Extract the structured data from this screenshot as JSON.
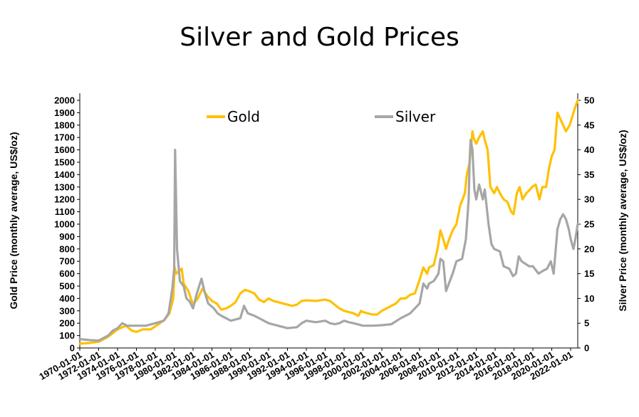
{
  "chart_data": {
    "type": "line",
    "title": "Silver and Gold Prices",
    "ylabel_left": "Gold Price (monthly average, US$/oz)",
    "ylabel_right": "Silver Price (monthly average, US$/oz)",
    "ylim_left": [
      0,
      2000
    ],
    "ylim_right": [
      0,
      50
    ],
    "yticks_left": [
      0,
      100,
      200,
      300,
      400,
      500,
      600,
      700,
      800,
      900,
      1000,
      1100,
      1200,
      1300,
      1400,
      1500,
      1600,
      1700,
      1800,
      1900,
      2000
    ],
    "yticks_right": [
      0,
      5,
      10,
      15,
      20,
      25,
      30,
      35,
      40,
      45,
      50
    ],
    "xlim": [
      1970.0,
      2022.75
    ],
    "xtick_labels": [
      "1970-01-01",
      "1972-01-01",
      "1974-01-01",
      "1976-01-01",
      "1978-01-01",
      "1980-01-01",
      "1982-01-01",
      "1984-01-01",
      "1986-01-01",
      "1988-01-01",
      "1990-01-01",
      "1992-01-01",
      "1994-01-01",
      "1996-01-01",
      "1998-01-01",
      "2000-01-01",
      "2002-01-01",
      "2004-01-01",
      "2006-01-01",
      "2008-01-01",
      "2010-01-01",
      "2012-01-01",
      "2014-01-01",
      "2016-01-01",
      "2018-01-01",
      "2020-01-01",
      "2022-01-01"
    ],
    "grid": false,
    "legend": "top",
    "series": [
      {
        "name": "Gold",
        "axis": "left",
        "color": "#FFC000",
        "x": [
          1970.0,
          1971.0,
          1972.0,
          1973.0,
          1973.5,
          1974.0,
          1974.9,
          1975.5,
          1976.0,
          1976.7,
          1977.5,
          1978.5,
          1979.0,
          1979.5,
          1979.9,
          1980.05,
          1980.2,
          1980.5,
          1980.8,
          1981.0,
          1981.5,
          1982.0,
          1982.5,
          1983.0,
          1983.5,
          1984.0,
          1984.5,
          1985.0,
          1985.5,
          1986.0,
          1986.5,
          1987.0,
          1987.5,
          1987.9,
          1988.5,
          1989.0,
          1989.5,
          1990.0,
          1990.5,
          1991.0,
          1991.5,
          1992.0,
          1992.5,
          1993.0,
          1993.5,
          1994.0,
          1995.0,
          1996.0,
          1996.5,
          1997.0,
          1997.5,
          1998.0,
          1998.5,
          1999.0,
          1999.5,
          1999.8,
          2000.0,
          2000.5,
          2001.0,
          2001.5,
          2002.0,
          2002.5,
          2003.0,
          2003.5,
          2004.0,
          2004.5,
          2005.0,
          2005.5,
          2006.0,
          2006.4,
          2006.8,
          2007.0,
          2007.5,
          2007.9,
          2008.2,
          2008.5,
          2008.8,
          2009.0,
          2009.5,
          2009.9,
          2010.3,
          2010.8,
          2011.0,
          2011.3,
          2011.6,
          2011.7,
          2012.0,
          2012.3,
          2012.7,
          2012.9,
          2013.2,
          2013.5,
          2013.9,
          2014.2,
          2014.5,
          2014.9,
          2015.3,
          2015.7,
          2015.95,
          2016.3,
          2016.6,
          2016.9,
          2017.3,
          2017.7,
          2017.9,
          2018.3,
          2018.7,
          2019.0,
          2019.4,
          2019.7,
          2020.0,
          2020.3,
          2020.6,
          2020.9,
          2021.2,
          2021.5,
          2021.9,
          2022.1,
          2022.3,
          2022.5,
          2022.75
        ],
        "values": [
          35,
          40,
          50,
          90,
          120,
          150,
          180,
          140,
          130,
          150,
          150,
          200,
          230,
          280,
          400,
          650,
          600,
          620,
          640,
          520,
          460,
          350,
          400,
          480,
          420,
          380,
          360,
          310,
          320,
          340,
          370,
          440,
          470,
          460,
          440,
          390,
          370,
          400,
          380,
          370,
          360,
          350,
          340,
          350,
          380,
          385,
          380,
          390,
          380,
          350,
          320,
          300,
          290,
          280,
          260,
          300,
          290,
          280,
          270,
          270,
          300,
          320,
          340,
          360,
          400,
          400,
          430,
          440,
          550,
          650,
          600,
          650,
          670,
          800,
          950,
          880,
          800,
          850,
          950,
          1000,
          1150,
          1250,
          1400,
          1500,
          1750,
          1700,
          1650,
          1700,
          1750,
          1680,
          1600,
          1300,
          1250,
          1300,
          1250,
          1200,
          1180,
          1100,
          1080,
          1250,
          1300,
          1200,
          1250,
          1280,
          1300,
          1320,
          1200,
          1300,
          1300,
          1450,
          1550,
          1600,
          1900,
          1850,
          1800,
          1750,
          1800,
          1850,
          1900,
          1950,
          2000
        ]
      },
      {
        "name": "Silver",
        "axis": "right",
        "color": "#A6A6A6",
        "x": [
          1970.0,
          1971.0,
          1972.0,
          1973.0,
          1973.5,
          1974.0,
          1974.5,
          1975.0,
          1976.0,
          1977.0,
          1978.0,
          1978.9,
          1979.4,
          1979.8,
          1980.0,
          1980.1,
          1980.3,
          1980.6,
          1981.0,
          1981.3,
          1981.6,
          1982.0,
          1982.4,
          1982.9,
          1983.2,
          1983.6,
          1984.2,
          1984.6,
          1985.0,
          1986.0,
          1987.0,
          1987.4,
          1987.8,
          1988.5,
          1989.0,
          1990.0,
          1991.0,
          1992.0,
          1993.0,
          1993.5,
          1994.0,
          1995.0,
          1996.0,
          1996.5,
          1997.0,
          1997.5,
          1998.0,
          1998.5,
          1999.0,
          2000.0,
          2001.0,
          2002.0,
          2003.0,
          2004.0,
          2004.5,
          2005.0,
          2006.0,
          2006.4,
          2006.8,
          2007.0,
          2007.5,
          2008.0,
          2008.2,
          2008.5,
          2008.8,
          2009.0,
          2009.5,
          2009.9,
          2010.5,
          2010.9,
          2011.2,
          2011.3,
          2011.4,
          2011.6,
          2011.8,
          2012.0,
          2012.3,
          2012.7,
          2012.9,
          2013.3,
          2013.6,
          2013.9,
          2014.5,
          2014.9,
          2015.5,
          2015.9,
          2016.2,
          2016.5,
          2016.8,
          2017.2,
          2017.6,
          2018.0,
          2018.6,
          2019.0,
          2019.5,
          2019.9,
          2020.2,
          2020.6,
          2020.9,
          2021.2,
          2021.5,
          2021.8,
          2022.0,
          2022.3,
          2022.5,
          2022.75
        ],
        "values": [
          1.8,
          1.6,
          1.5,
          2.5,
          3.5,
          4.0,
          5.0,
          4.5,
          4.5,
          4.5,
          5.0,
          5.5,
          7.0,
          12.0,
          16.0,
          40.0,
          20.0,
          13.5,
          12.5,
          10.0,
          9.5,
          8.0,
          11.0,
          14.0,
          11.5,
          9.0,
          8.0,
          7.0,
          6.5,
          5.5,
          6.0,
          8.5,
          7.0,
          6.5,
          6.0,
          5.0,
          4.5,
          4.0,
          4.2,
          5.0,
          5.5,
          5.2,
          5.5,
          5.0,
          4.8,
          5.0,
          5.5,
          5.2,
          5.0,
          4.5,
          4.5,
          4.6,
          4.8,
          6.0,
          6.5,
          7.0,
          9.0,
          13.0,
          12.0,
          13.0,
          13.5,
          15.0,
          18.0,
          17.5,
          11.5,
          12.5,
          15.0,
          17.5,
          18.0,
          22.0,
          30.0,
          38.0,
          42.0,
          40.0,
          32.0,
          30.0,
          33.0,
          30.0,
          32.0,
          25.0,
          21.0,
          20.0,
          19.5,
          16.5,
          16.0,
          14.5,
          15.0,
          18.5,
          17.5,
          17.0,
          16.5,
          16.5,
          15.0,
          15.5,
          16.0,
          17.5,
          15.0,
          24.0,
          26.0,
          27.0,
          26.0,
          24.0,
          22.0,
          20.0,
          22.0,
          25.0
        ]
      }
    ]
  }
}
